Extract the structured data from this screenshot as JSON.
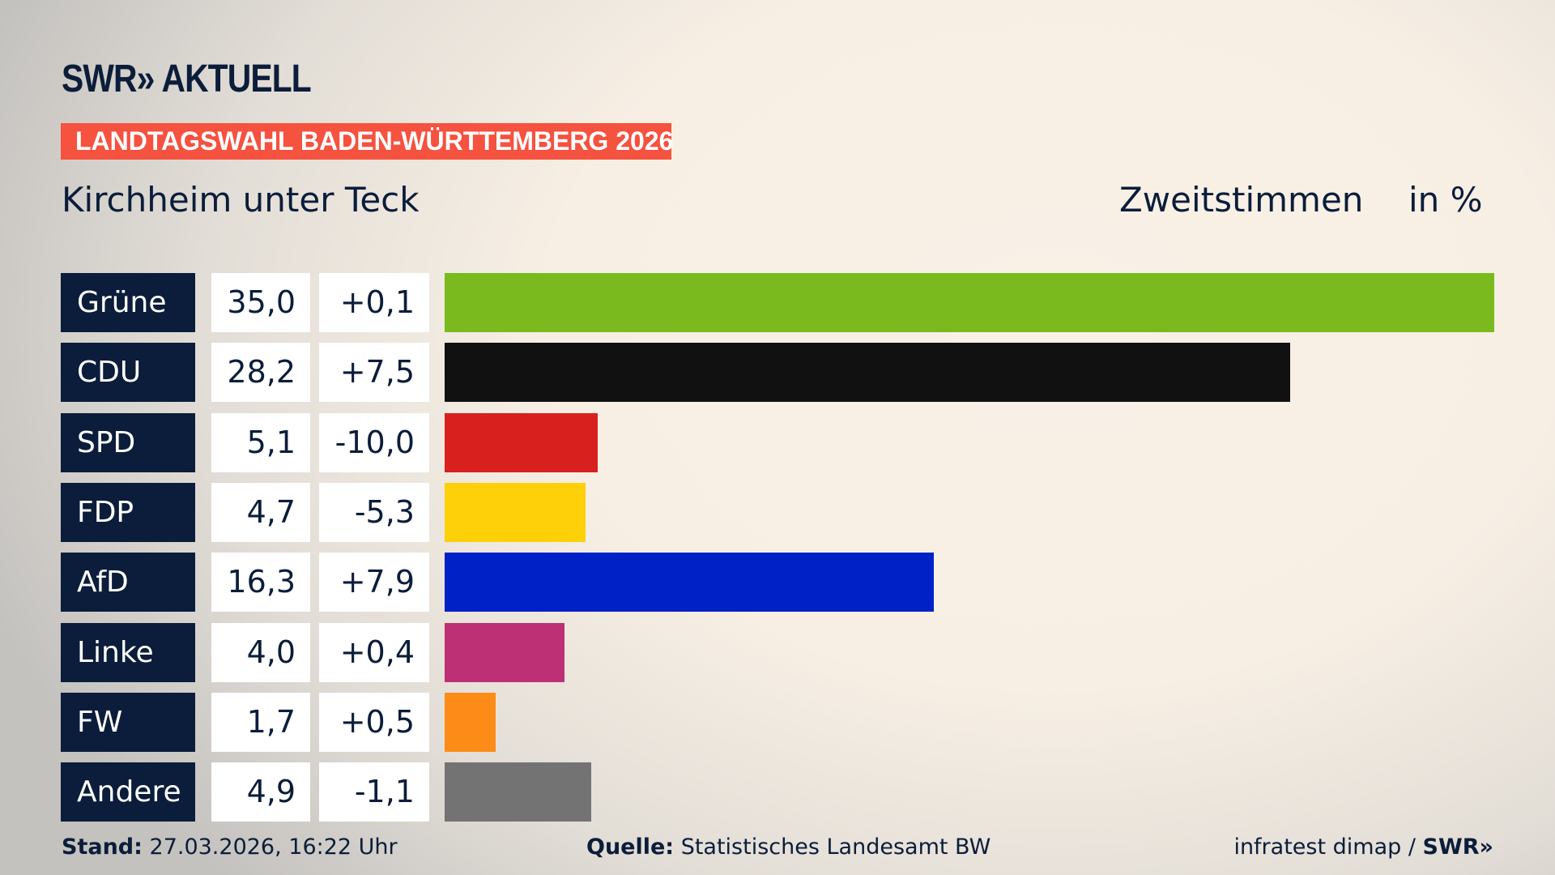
{
  "header": {
    "logo": "SWR» AKTUELL",
    "kicker": "LANDTAGSWAHL BADEN-WÜRTTEMBERG 2026",
    "title": "Kirchheim unter Teck",
    "vote_type": "Zweitstimmen",
    "unit": "in %"
  },
  "chart_data": {
    "type": "bar",
    "orientation": "horizontal",
    "xlim": [
      0,
      35
    ],
    "categories": [
      "Grüne",
      "CDU",
      "SPD",
      "FDP",
      "AfD",
      "Linke",
      "FW",
      "Andere"
    ],
    "values": [
      35.0,
      28.2,
      5.1,
      4.7,
      16.3,
      4.0,
      1.7,
      4.9
    ],
    "value_labels": [
      "35,0",
      "28,2",
      "5,1",
      "4,7",
      "16,3",
      "4,0",
      "1,7",
      "4,9"
    ],
    "diff_labels": [
      "+0,1",
      "+7,5",
      "-10,0",
      "-5,3",
      "+7,9",
      "+0,4",
      "+0,5",
      "-1,1"
    ],
    "colors": [
      "#7aba1e",
      "#111111",
      "#d8201f",
      "#fdd009",
      "#0021c6",
      "#bd3075",
      "#fc8c17",
      "#737373"
    ]
  },
  "footer": {
    "stand_label": "Stand:",
    "stand_value": "27.03.2026, 16:22 Uhr",
    "source_label": "Quelle:",
    "source_value": "Statistisches Landesamt BW",
    "credit": "infratest dimap / ",
    "credit_logo": "SWR»"
  }
}
